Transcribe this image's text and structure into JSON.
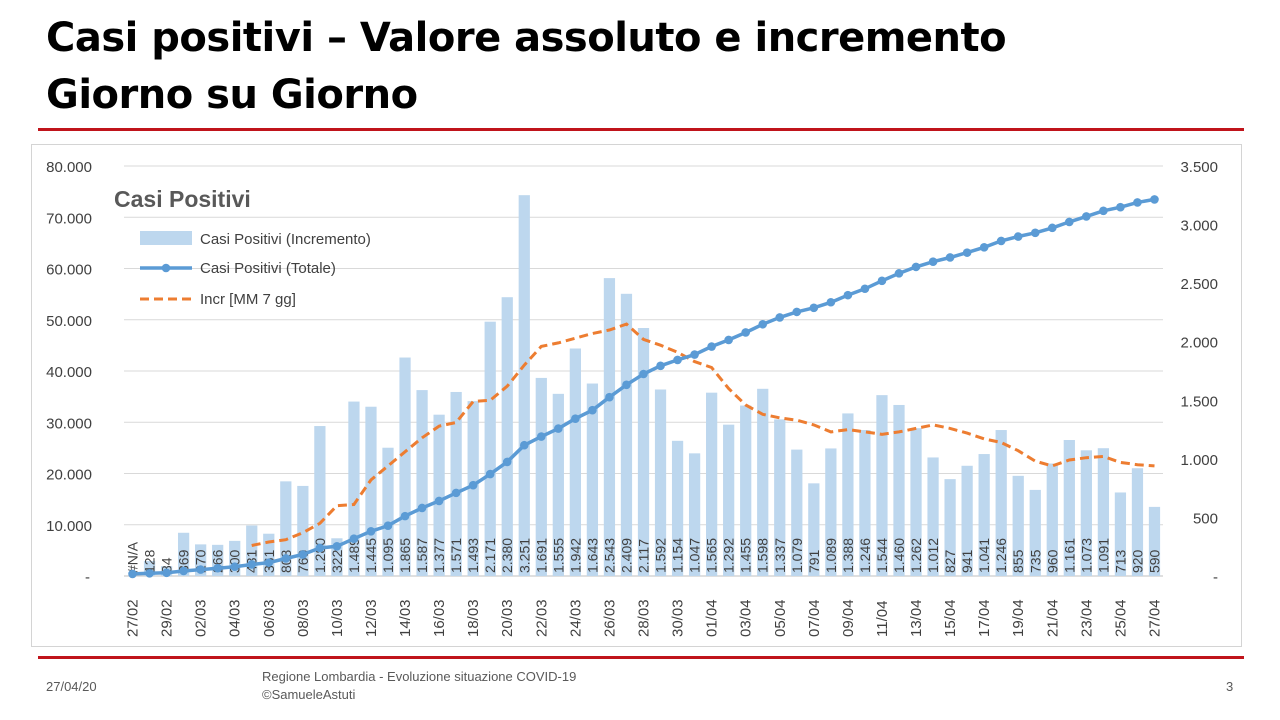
{
  "slide": {
    "title_line1": "Casi positivi – Valore assoluto e incremento",
    "title_line2": "Giorno su Giorno",
    "footer_date": "27/04/20",
    "footer_source_line1": "Regione Lombardia - Evoluzione situazione COVID-19",
    "footer_source_line2": "©SamueleAstuti",
    "page_number": "3",
    "accent_color": "#c0141b"
  },
  "chart_data": {
    "type": "bar",
    "title": "Casi Positivi",
    "categories": [
      "27/02",
      "28/02",
      "29/02",
      "01/03",
      "02/03",
      "03/03",
      "04/03",
      "05/03",
      "06/03",
      "07/03",
      "08/03",
      "09/03",
      "10/03",
      "11/03",
      "12/03",
      "13/03",
      "14/03",
      "15/03",
      "16/03",
      "17/03",
      "18/03",
      "19/03",
      "20/03",
      "21/03",
      "22/03",
      "23/03",
      "24/03",
      "25/03",
      "26/03",
      "27/03",
      "28/03",
      "29/03",
      "30/03",
      "31/03",
      "01/04",
      "02/04",
      "03/04",
      "04/04",
      "05/04",
      "06/04",
      "07/04",
      "08/04",
      "09/04",
      "10/04",
      "11/04",
      "12/04",
      "13/04",
      "14/04",
      "15/04",
      "16/04",
      "17/04",
      "18/04",
      "19/04",
      "20/04",
      "21/04",
      "22/04",
      "23/04",
      "24/04",
      "25/04",
      "26/04",
      "27/04"
    ],
    "tick_labels": [
      "27/02",
      "29/02",
      "02/03",
      "04/03",
      "06/03",
      "08/03",
      "10/03",
      "12/03",
      "14/03",
      "16/03",
      "18/03",
      "20/03",
      "22/03",
      "24/03",
      "26/03",
      "28/03",
      "30/03",
      "01/04",
      "03/04",
      "05/04",
      "07/04",
      "09/04",
      "11/04",
      "13/04",
      "15/04",
      "17/04",
      "19/04",
      "21/04",
      "23/04",
      "25/04",
      "27/04"
    ],
    "data_labels": [
      "#N/A",
      "128",
      "84",
      "369",
      "270",
      "266",
      "300",
      "431",
      "361",
      "808",
      "769",
      "1.280",
      "322",
      "1.489",
      "1.445",
      "1.095",
      "1.865",
      "1.587",
      "1.377",
      "1.571",
      "1.493",
      "2.171",
      "2.380",
      "3.251",
      "1.691",
      "1.555",
      "1.942",
      "1.643",
      "2.543",
      "2.409",
      "2.117",
      "1.592",
      "1.154",
      "1.047",
      "1.565",
      "1.292",
      "1.455",
      "1.598",
      "1.337",
      "1.079",
      "791",
      "1.089",
      "1.388",
      "1.246",
      "1.544",
      "1.460",
      "1.262",
      "1.012",
      "827",
      "941",
      "1.041",
      "1.246",
      "855",
      "735",
      "960",
      "1.161",
      "1.073",
      "1.091",
      "713",
      "920",
      "590"
    ],
    "series": [
      {
        "name": "Casi Positivi (Incremento)",
        "axis": "right",
        "kind": "bar",
        "color": "#bdd7ee",
        "values": [
          null,
          128,
          84,
          369,
          270,
          266,
          300,
          431,
          361,
          808,
          769,
          1280,
          322,
          1489,
          1445,
          1095,
          1865,
          1587,
          1377,
          1571,
          1493,
          2171,
          2380,
          3251,
          1691,
          1555,
          1942,
          1643,
          2543,
          2409,
          2117,
          1592,
          1154,
          1047,
          1565,
          1292,
          1455,
          1598,
          1337,
          1079,
          791,
          1089,
          1388,
          1246,
          1544,
          1460,
          1262,
          1012,
          827,
          941,
          1041,
          1246,
          855,
          735,
          960,
          1161,
          1073,
          1091,
          713,
          920,
          590
        ]
      },
      {
        "name": "Casi Positivi (Totale)",
        "axis": "left",
        "kind": "line-markers",
        "color": "#5b9bd5",
        "values": [
          403,
          531,
          615,
          984,
          1254,
          1520,
          1820,
          2251,
          2612,
          3420,
          4189,
          5469,
          5791,
          7280,
          8725,
          9820,
          11685,
          13272,
          14649,
          16220,
          17713,
          19884,
          22264,
          25515,
          27206,
          28761,
          30703,
          32346,
          34889,
          37298,
          39415,
          41007,
          42161,
          43208,
          44773,
          46065,
          47520,
          49118,
          50455,
          51534,
          52325,
          53414,
          54802,
          56048,
          57592,
          59052,
          60314,
          61326,
          62153,
          63094,
          64135,
          65381,
          66236,
          66971,
          67931,
          69092,
          70165,
          71256,
          71969,
          72889,
          73479
        ]
      },
      {
        "name": "Incr [MM 7 gg]",
        "axis": "right",
        "kind": "dashed-line",
        "color": "#ed7d31",
        "values": [
          null,
          null,
          null,
          null,
          null,
          null,
          null,
          260,
          290,
          310,
          370,
          450,
          600,
          610,
          820,
          940,
          1060,
          1180,
          1280,
          1310,
          1490,
          1500,
          1620,
          1800,
          1960,
          1990,
          2030,
          2070,
          2100,
          2150,
          2020,
          1970,
          1910,
          1830,
          1780,
          1600,
          1460,
          1380,
          1350,
          1330,
          1290,
          1230,
          1250,
          1230,
          1210,
          1230,
          1260,
          1290,
          1260,
          1220,
          1170,
          1140,
          1070,
          980,
          940,
          990,
          1010,
          1020,
          970,
          950,
          940
        ]
      }
    ],
    "y_left": {
      "min": 0,
      "max": 80000,
      "step": 10000,
      "tick_labels": [
        "-",
        "10.000",
        "20.000",
        "30.000",
        "40.000",
        "50.000",
        "60.000",
        "70.000",
        "80.000"
      ]
    },
    "y_right": {
      "min": 0,
      "max": 3500,
      "step": 500,
      "tick_labels": [
        "-",
        "500",
        "1.000",
        "1.500",
        "2.000",
        "2.500",
        "3.000",
        "3.500"
      ]
    },
    "grid": true,
    "legend_position": "top-left"
  }
}
